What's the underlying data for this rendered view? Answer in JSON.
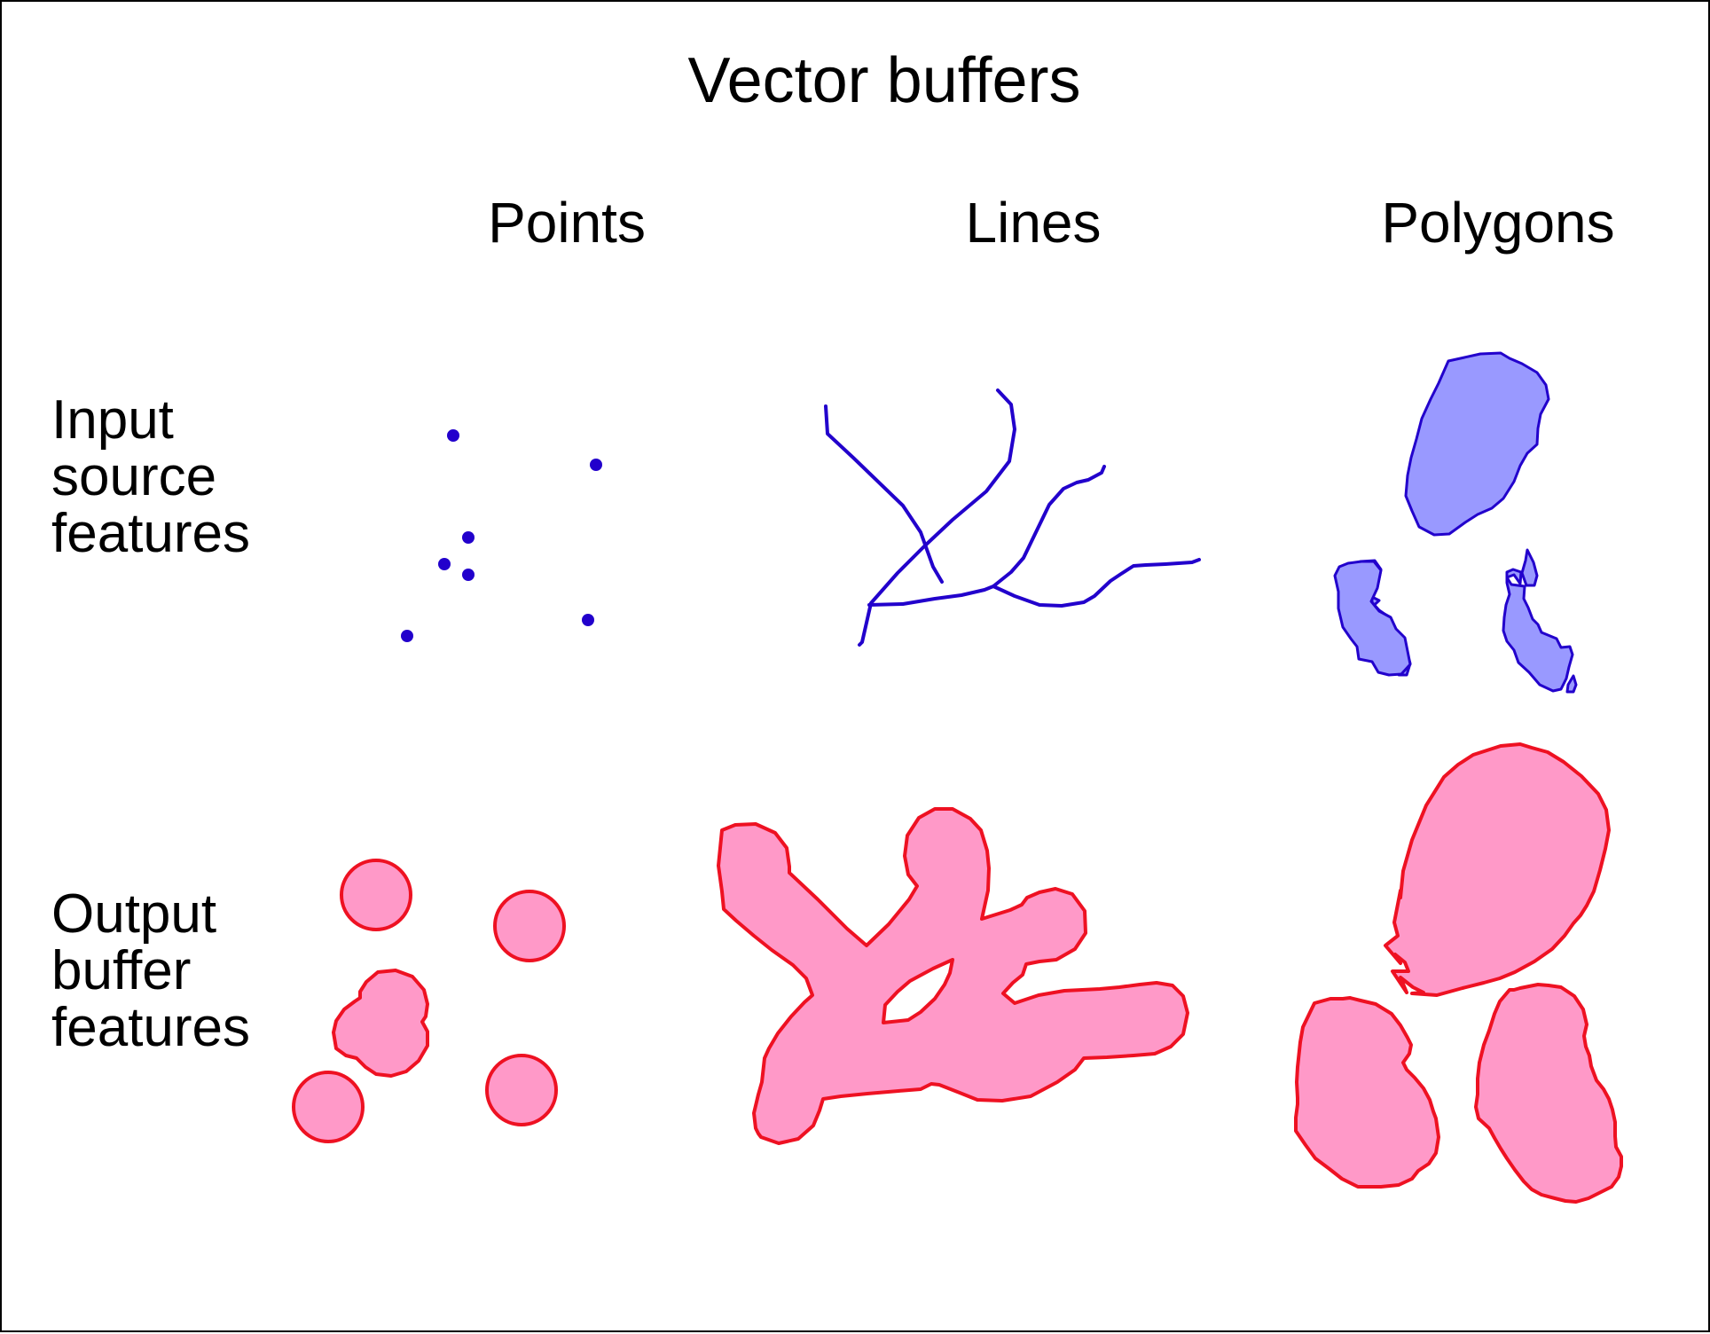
{
  "title": "Vector buffers",
  "columns": {
    "points": "Points",
    "lines": "Lines",
    "polygons": "Polygons"
  },
  "rows": {
    "input": "Input\nsource\nfeatures",
    "output": "Output\nbuffer\nfeatures"
  },
  "colors": {
    "input_stroke": "#2200cc",
    "input_fill": "#9999ff",
    "buffer_stroke": "#ee1122",
    "buffer_fill": "#ff99c8",
    "border": "#000000",
    "background": "#ffffff"
  }
}
